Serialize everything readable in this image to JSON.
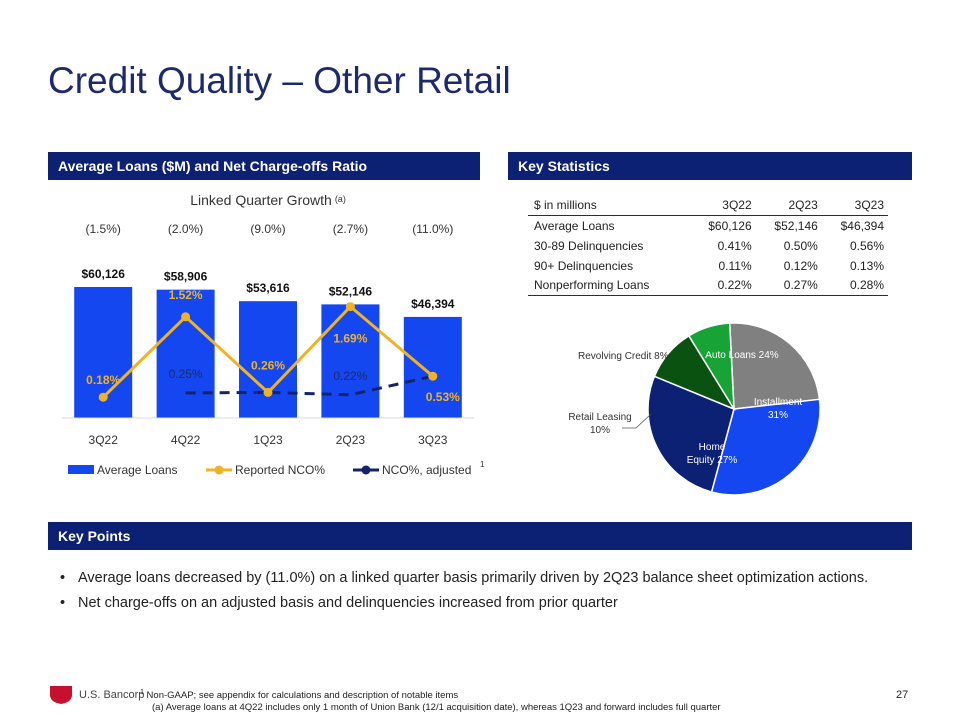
{
  "title": "Credit Quality – Other Retail",
  "sections": {
    "chart_header": "Average Loans ($M) and Net Charge-offs Ratio",
    "stats_header": "Key Statistics",
    "points_header": "Key Points"
  },
  "colors": {
    "navy": "#0c2074",
    "bar_blue": "#1447f0",
    "reported_line": "#f0b323",
    "adjusted_line": "#13246b"
  },
  "chart_data": [
    {
      "type": "bar",
      "title": "Linked Quarter Growth",
      "title_superscript": "(a)",
      "categories": [
        "3Q22",
        "4Q22",
        "1Q23",
        "2Q23",
        "3Q23"
      ],
      "growth_labels": [
        "(1.5%)",
        "(2.0%)",
        "(9.0%)",
        "(2.7%)",
        "(11.0%)"
      ],
      "series": [
        {
          "name": "Average Loans",
          "type": "bar",
          "values": [
            60126,
            58906,
            53616,
            52146,
            46394
          ],
          "labels": [
            "$60,126",
            "$58,906",
            "$53,616",
            "$52,146",
            "$46,394"
          ]
        },
        {
          "name": "Reported NCO%",
          "type": "line",
          "values": [
            0.18,
            1.52,
            0.26,
            1.69,
            0.53
          ],
          "labels": [
            "0.18%",
            "1.52%",
            "0.26%",
            "1.69%",
            "0.53%"
          ]
        },
        {
          "name": "NCO%, adjusted",
          "type": "line-dashed",
          "values": [
            null,
            0.25,
            0.26,
            0.22,
            0.53
          ],
          "labels": [
            "",
            "0.25%",
            "",
            "0.22%",
            ""
          ]
        }
      ],
      "legend_footnote": "1",
      "ylim_loans": [
        0,
        60126
      ],
      "ylim_nco": [
        0,
        1.8
      ]
    },
    {
      "type": "pie",
      "slices": [
        {
          "label": "Auto Loans 24%",
          "value": 24,
          "color": "#808080"
        },
        {
          "label": "Installment 31%",
          "value": 31,
          "color": "#1447f0"
        },
        {
          "label": "Home Equity 27%",
          "value": 27,
          "color": "#0c2074"
        },
        {
          "label": "Retail Leasing 10%",
          "value": 10,
          "color": "#0a5210"
        },
        {
          "label": "Revolving Credit 8%",
          "value": 8,
          "color": "#17a335"
        }
      ]
    }
  ],
  "stats": {
    "columns": [
      "$ in millions",
      "3Q22",
      "2Q23",
      "3Q23"
    ],
    "rows": [
      [
        "Average Loans",
        "$60,126",
        "$52,146",
        "$46,394"
      ],
      [
        "30-89 Delinquencies",
        "0.41%",
        "0.50%",
        "0.56%"
      ],
      [
        "90+ Delinquencies",
        "0.11%",
        "0.12%",
        "0.13%"
      ],
      [
        "Nonperforming Loans",
        "0.22%",
        "0.27%",
        "0.28%"
      ]
    ]
  },
  "key_points": [
    "Average loans decreased by (11.0%) on a linked quarter basis primarily driven by  2Q23 balance sheet optimization actions.",
    "Net charge-offs on an adjusted basis and delinquencies increased from prior quarter"
  ],
  "footer": {
    "logo_text": "U.S. Bancorp",
    "footnote1_marker": "1",
    "footnote1": " Non-GAAP; see appendix for calculations and description of notable items",
    "footnote2": "(a) Average loans at 4Q22 includes only 1 month of Union Bank (12/1 acquisition date), whereas 1Q23 and forward includes full quarter",
    "page_number": "27"
  }
}
